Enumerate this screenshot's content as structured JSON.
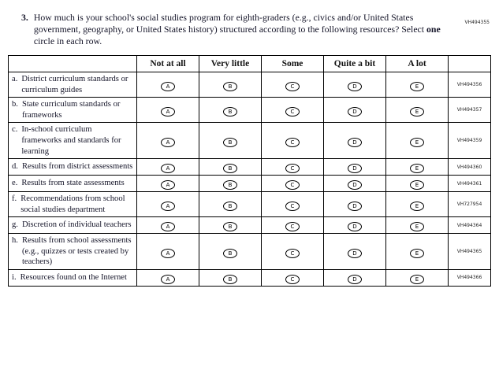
{
  "page": {
    "top_right_code": "VH494355"
  },
  "question": {
    "number": "3.",
    "text_before": "How much is your school's social studies program for eighth-graders (e.g., civics and/or United States government, geography, or United States history) structured according to the following resources? Select ",
    "bold_word": "one",
    "text_after": " circle in each row."
  },
  "table": {
    "columns": [
      "Not at all",
      "Very little",
      "Some",
      "Quite a bit",
      "A lot"
    ],
    "option_letters": [
      "A",
      "B",
      "C",
      "D",
      "E"
    ],
    "rows": [
      {
        "letter": "a.",
        "label": "District curriculum standards or curriculum guides",
        "code": "VH494356"
      },
      {
        "letter": "b.",
        "label": "State curriculum standards or frameworks",
        "code": "VH494357"
      },
      {
        "letter": "c.",
        "label": "In-school curriculum frameworks and standards for learning",
        "code": "VH494359"
      },
      {
        "letter": "d.",
        "label": "Results from district assessments",
        "code": "VH494360"
      },
      {
        "letter": "e.",
        "label": "Results from state assessments",
        "code": "VH494361"
      },
      {
        "letter": "f.",
        "label": "Recommendations from school social studies department",
        "code": "VH727954"
      },
      {
        "letter": "g.",
        "label": "Discretion of individual teachers",
        "code": "VH494364"
      },
      {
        "letter": "h.",
        "label": "Results from school assessments (e.g., quizzes or tests created by teachers)",
        "code": "VH494365"
      },
      {
        "letter": "i.",
        "label": "Resources found on the Internet",
        "code": "VH494366"
      }
    ]
  }
}
